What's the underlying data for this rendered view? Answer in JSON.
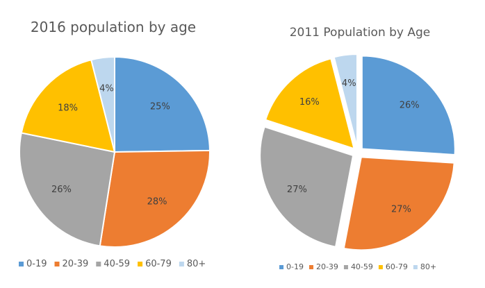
{
  "chart_data": [
    {
      "type": "pie",
      "title": "2016 population by age",
      "categories": [
        "0-19",
        "20-39",
        "40-59",
        "60-79",
        "80+"
      ],
      "values": [
        25,
        28,
        26,
        18,
        4
      ],
      "data_labels": [
        "25%",
        "28%",
        "26%",
        "18%",
        "4%"
      ],
      "exploded": false,
      "legend_position": "bottom"
    },
    {
      "type": "pie",
      "title": "2011 Population by Age",
      "categories": [
        "0-19",
        "20-39",
        "40-59",
        "60-79",
        "80+"
      ],
      "values": [
        26,
        27,
        27,
        16,
        4
      ],
      "data_labels": [
        "26%",
        "27%",
        "27%",
        "16%",
        "4%"
      ],
      "exploded": true,
      "legend_position": "bottom"
    }
  ],
  "colors": {
    "0-19": "#5b9bd5",
    "20-39": "#ed7d31",
    "40-59": "#a5a5a5",
    "60-79": "#ffc000",
    "80+": "#bdd7ee"
  }
}
